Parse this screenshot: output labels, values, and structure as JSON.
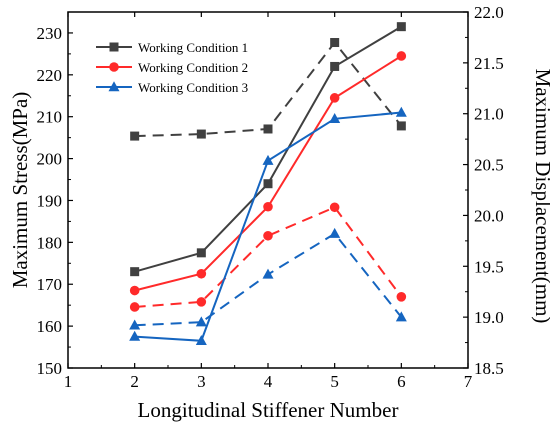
{
  "chart_data": {
    "type": "line",
    "title": "",
    "xlabel": "Longitudinal Stiffener Number",
    "ylabel_left": "Maximum Stress(MPa)",
    "ylabel_right": "Maximum Displacement(mm)",
    "xlim": [
      1,
      7
    ],
    "ylim_left": [
      150,
      235
    ],
    "ylim_right": [
      18.5,
      22.0
    ],
    "x_ticks": [
      "1",
      "2",
      "3",
      "4",
      "5",
      "6",
      "7"
    ],
    "y_left_ticks": [
      "150",
      "160",
      "170",
      "180",
      "190",
      "200",
      "210",
      "220",
      "230"
    ],
    "y_right_ticks": [
      "18.5",
      "19.0",
      "19.5",
      "20.0",
      "20.5",
      "21.0",
      "21.5",
      "22.0"
    ],
    "legend_position": "top-left",
    "x": [
      2,
      3,
      4,
      5,
      6
    ],
    "series": [
      {
        "name": "Working Condition 1",
        "color": "#404040",
        "marker": "square",
        "stress": [
          173.0,
          177.5,
          194.0,
          222.0,
          231.5
        ],
        "displacement": [
          20.78,
          20.8,
          20.85,
          21.7,
          20.88
        ]
      },
      {
        "name": "Working Condition 2",
        "color": "#ff2a2a",
        "marker": "circle",
        "stress": [
          168.5,
          172.5,
          188.5,
          214.5,
          224.5
        ],
        "displacement": [
          19.1,
          19.15,
          19.8,
          20.08,
          19.2
        ]
      },
      {
        "name": "Working Condition 3",
        "color": "#1565c0",
        "marker": "triangle",
        "stress": [
          157.5,
          156.5,
          199.5,
          209.5,
          211.0
        ],
        "displacement": [
          18.92,
          18.95,
          19.42,
          19.82,
          19.0
        ]
      }
    ]
  }
}
